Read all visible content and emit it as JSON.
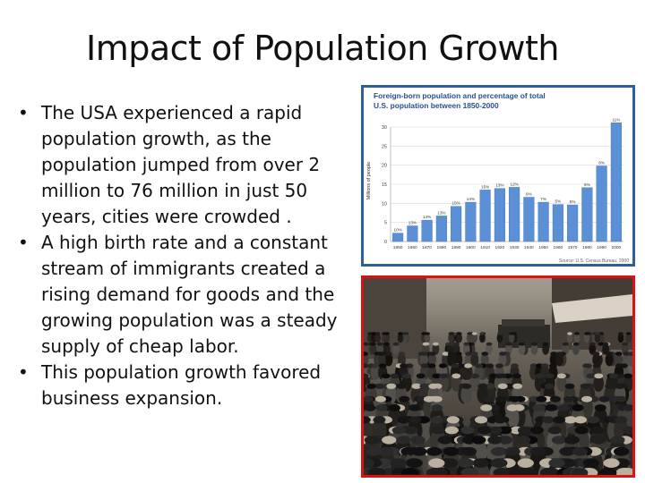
{
  "slide": {
    "title": "Impact of Population Growth",
    "bullets": [
      "The USA experienced a rapid population growth, as the population jumped from over 2 million to 76 million in just 50 years, cities were crowded .",
      "A high birth rate and a constant stream of immigrants created a rising demand for goods and the growing population was a steady supply of cheap labor.",
      "This population growth  favored business expansion."
    ],
    "bullet_glyph": "•"
  },
  "chart_data": {
    "type": "bar",
    "title": "Foreign-born population and percentage of total U.S. population between 1850-2000",
    "ylabel": "Millions of people",
    "xlabel": "",
    "categories": [
      "1850",
      "1860",
      "1870",
      "1880",
      "1890",
      "1900",
      "1910",
      "1920",
      "1930",
      "1940",
      "1950",
      "1960",
      "1970",
      "1980",
      "1990",
      "2000"
    ],
    "values": [
      2.2,
      4.1,
      5.6,
      6.7,
      9.2,
      10.3,
      13.5,
      13.9,
      14.2,
      11.6,
      10.3,
      9.7,
      9.6,
      14.1,
      19.8,
      31.1
    ],
    "bar_labels": [
      "10%",
      "13%",
      "14%",
      "13%",
      "15%",
      "14%",
      "15%",
      "13%",
      "12%",
      "9%",
      "7%",
      "5%",
      "5%",
      "6%",
      "8%",
      "11%"
    ],
    "ylim": [
      0,
      30
    ],
    "yticks": [
      0,
      5,
      10,
      15,
      20,
      25,
      30
    ],
    "grid": true,
    "source": "Source: U.S. Census Bureau, 2000",
    "colors": {
      "bar": "#5b8fd6",
      "bar_edge": "#3a6fb8",
      "title": "#2a4f8f",
      "frame": "#2e5e9e"
    }
  },
  "colors": {
    "photo_frame": "#d11111"
  }
}
